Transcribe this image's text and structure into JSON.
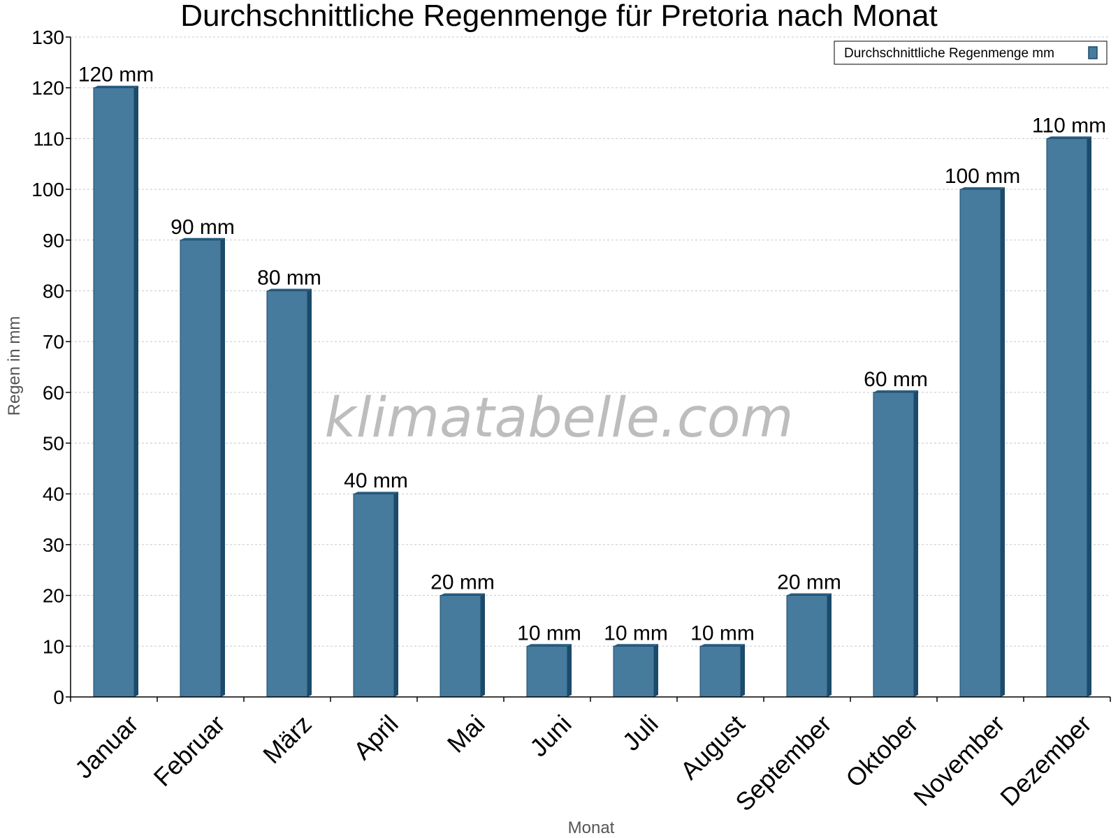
{
  "chart_data": {
    "type": "bar",
    "title": "Durchschnittliche Regenmenge für Pretoria nach Monat",
    "xlabel": "Monat",
    "ylabel": "Regen in mm",
    "categories": [
      "Januar",
      "Februar",
      "März",
      "April",
      "Mai",
      "Juni",
      "Juli",
      "August",
      "September",
      "Oktober",
      "November",
      "Dezember"
    ],
    "series": [
      {
        "name": "Durchschnittliche Regenmenge mm",
        "values": [
          120,
          90,
          80,
          40,
          20,
          10,
          10,
          10,
          20,
          60,
          100,
          110
        ],
        "labels": [
          "120 mm",
          "90 mm",
          "80 mm",
          "40 mm",
          "20 mm",
          "10 mm",
          "10 mm",
          "10 mm",
          "20 mm",
          "60 mm",
          "100 mm",
          "110 mm"
        ]
      }
    ],
    "ylim": [
      0,
      130
    ],
    "yticks": [
      "0",
      "10",
      "20",
      "30",
      "40",
      "50",
      "60",
      "70",
      "80",
      "90",
      "100",
      "110",
      "120",
      "130"
    ],
    "grid": true,
    "legend_position": "top-right",
    "watermark": "klimatabelle.com",
    "colors": {
      "bar_front": "#467b9d",
      "bar_side": "#1b4a6b",
      "bar_top": "#2b5f82",
      "grid": "#c8c8c8"
    }
  }
}
